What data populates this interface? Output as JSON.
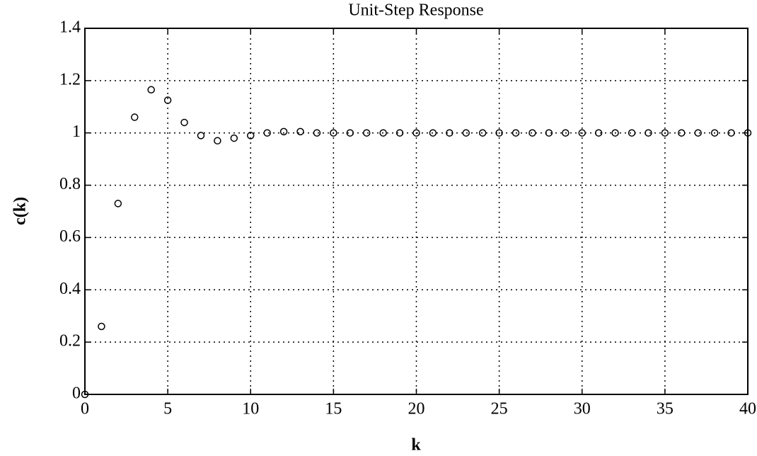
{
  "chart_data": {
    "type": "scatter",
    "title": "Unit-Step Response",
    "x_label": "k",
    "y_label": "c(k)",
    "x": [
      0,
      1,
      2,
      3,
      4,
      5,
      6,
      7,
      8,
      9,
      10,
      11,
      12,
      13,
      14,
      15,
      16,
      17,
      18,
      19,
      20,
      21,
      22,
      23,
      24,
      25,
      26,
      27,
      28,
      29,
      30,
      31,
      32,
      33,
      34,
      35,
      36,
      37,
      38,
      39,
      40
    ],
    "values": [
      0,
      0.26,
      0.73,
      1.06,
      1.165,
      1.125,
      1.04,
      0.99,
      0.97,
      0.98,
      0.99,
      1.0,
      1.005,
      1.005,
      1.0,
      1.0,
      1.0,
      1.0,
      1.0,
      1.0,
      1.0,
      1.0,
      1.0,
      1.0,
      1.0,
      1.0,
      1.0,
      1.0,
      1.0,
      1.0,
      1.0,
      1.0,
      1.0,
      1.0,
      1.0,
      1.0,
      1.0,
      1.0,
      1.0,
      1.0,
      1.0
    ],
    "color": "#000000",
    "marker": "circle",
    "xlim": [
      0,
      40
    ],
    "xticks": [
      0,
      5,
      10,
      15,
      20,
      25,
      30,
      35,
      40
    ],
    "ylim": [
      0,
      1.4
    ],
    "yticks": [
      0,
      0.2,
      0.4,
      0.6,
      0.8,
      1,
      1.2,
      1.4
    ],
    "grid": true
  }
}
